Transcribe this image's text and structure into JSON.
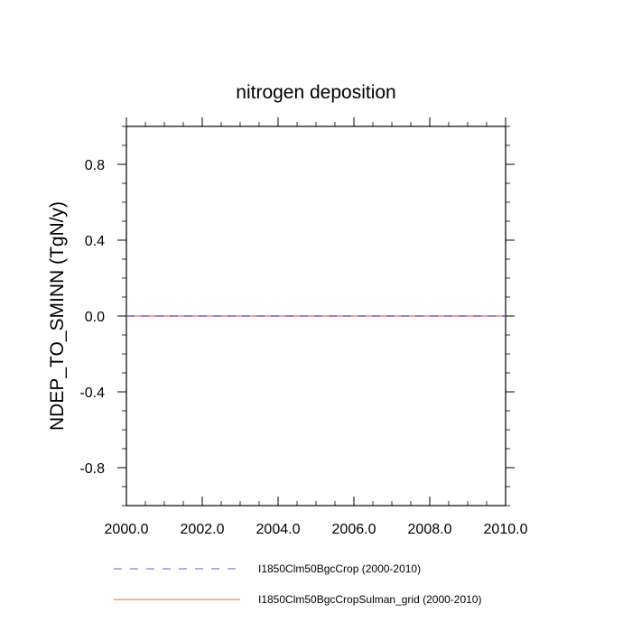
{
  "chart_data": {
    "type": "line",
    "title": "nitrogen deposition",
    "xlabel": "",
    "ylabel": "NDEP_TO_SMINN  (TgN/y)",
    "xlim": [
      2000.0,
      2010.0
    ],
    "ylim": [
      -1.0,
      1.0
    ],
    "x_ticks": [
      "2000.0",
      "2002.0",
      "2004.0",
      "2006.0",
      "2008.0",
      "2010.0"
    ],
    "y_ticks": [
      "0.8",
      "0.4",
      "0.0",
      "-0.4",
      "-0.8"
    ],
    "grid": false,
    "legend_position": "bottom",
    "series": [
      {
        "name": "I1850Clm50BgcCrop (2000-2010)",
        "color": "#6a5acd",
        "dash": "dashed",
        "x": [
          2000.0,
          2001.0,
          2002.0,
          2003.0,
          2004.0,
          2005.0,
          2006.0,
          2007.0,
          2008.0,
          2009.0,
          2010.0
        ],
        "values": [
          0,
          0,
          0,
          0,
          0,
          0,
          0,
          0,
          0,
          0,
          0
        ]
      },
      {
        "name": "I1850Clm50BgcCropSulman_grid (2000-2010)",
        "color": "#f08080",
        "dash": "solid",
        "x": [
          2000.0,
          2001.0,
          2002.0,
          2003.0,
          2004.0,
          2005.0,
          2006.0,
          2007.0,
          2008.0,
          2009.0,
          2010.0
        ],
        "values": [
          0,
          0,
          0,
          0,
          0,
          0,
          0,
          0,
          0,
          0,
          0
        ]
      }
    ]
  }
}
